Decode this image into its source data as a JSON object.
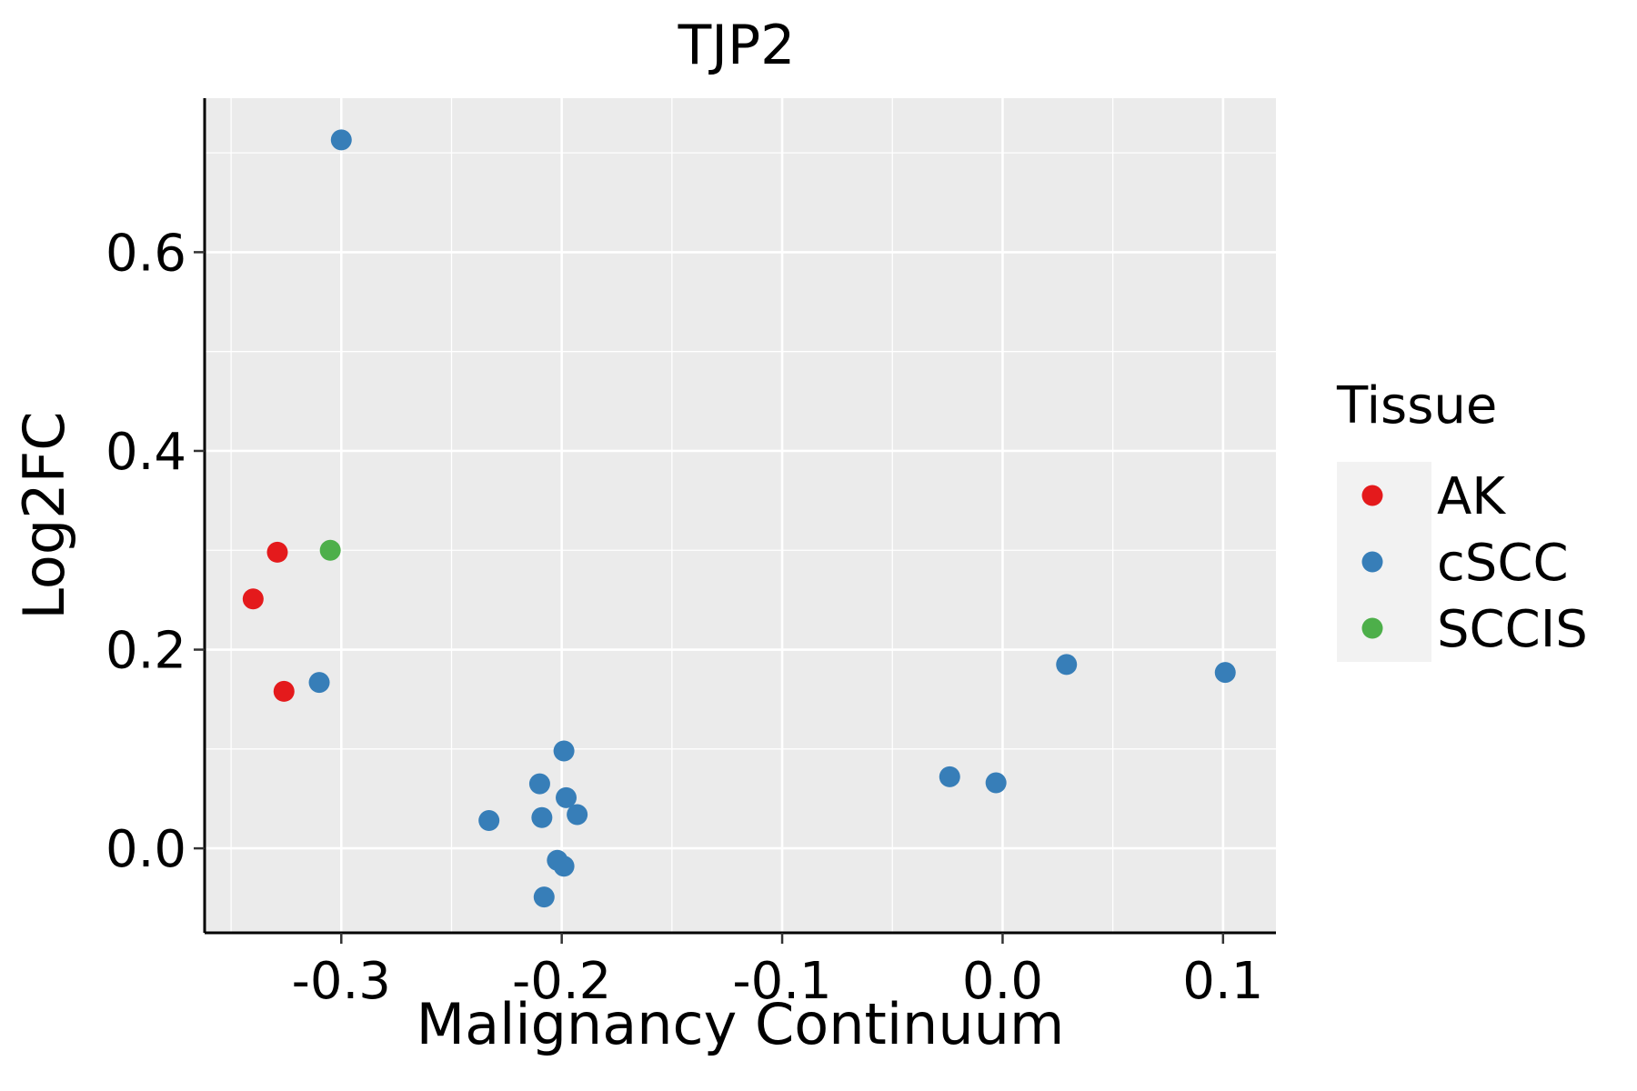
{
  "chart_data": {
    "type": "scatter",
    "title": "TJP2",
    "xlabel": "Malignancy Continuum",
    "ylabel": "Log2FC",
    "xlim": [
      -0.362,
      0.124
    ],
    "ylim": [
      -0.085,
      0.755
    ],
    "x_ticks": [
      -0.3,
      -0.2,
      -0.1,
      0.0,
      0.1
    ],
    "x_tick_labels": [
      "-0.3",
      "-0.2",
      "-0.1",
      "0.0",
      "0.1"
    ],
    "y_ticks": [
      0.0,
      0.2,
      0.4,
      0.6
    ],
    "y_tick_labels": [
      "0.0",
      "0.2",
      "0.4",
      "0.6"
    ],
    "grid": true,
    "legend": {
      "title": "Tissue",
      "placement": "right",
      "entries": [
        {
          "label": "AK",
          "color": "#E41A1C"
        },
        {
          "label": "cSCC",
          "color": "#377EB8"
        },
        {
          "label": "SCCIS",
          "color": "#4DAF4A"
        }
      ]
    },
    "series": [
      {
        "name": "AK",
        "color": "#E41A1C",
        "points": [
          {
            "x": -0.34,
            "y": 0.251
          },
          {
            "x": -0.329,
            "y": 0.298
          },
          {
            "x": -0.326,
            "y": 0.158
          }
        ]
      },
      {
        "name": "cSCC",
        "color": "#377EB8",
        "points": [
          {
            "x": -0.3,
            "y": 0.713
          },
          {
            "x": -0.31,
            "y": 0.167
          },
          {
            "x": -0.199,
            "y": 0.098
          },
          {
            "x": -0.21,
            "y": 0.065
          },
          {
            "x": -0.198,
            "y": 0.051
          },
          {
            "x": -0.209,
            "y": 0.031
          },
          {
            "x": -0.193,
            "y": 0.034
          },
          {
            "x": -0.233,
            "y": 0.028
          },
          {
            "x": -0.202,
            "y": -0.012
          },
          {
            "x": -0.199,
            "y": -0.018
          },
          {
            "x": -0.208,
            "y": -0.049
          },
          {
            "x": -0.024,
            "y": 0.072
          },
          {
            "x": -0.003,
            "y": 0.066
          },
          {
            "x": 0.029,
            "y": 0.185
          },
          {
            "x": 0.101,
            "y": 0.177
          }
        ]
      },
      {
        "name": "SCCIS",
        "color": "#4DAF4A",
        "points": [
          {
            "x": -0.305,
            "y": 0.3
          }
        ]
      }
    ]
  }
}
